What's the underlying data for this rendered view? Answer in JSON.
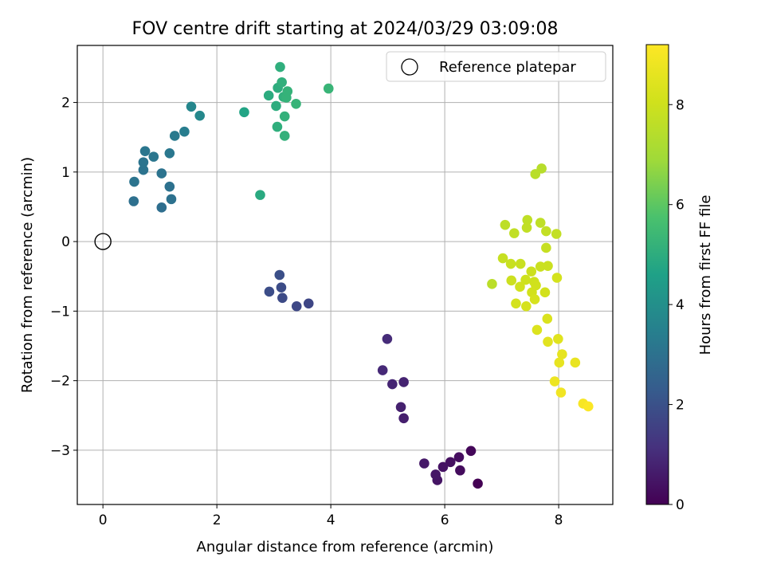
{
  "chart_data": {
    "type": "scatter",
    "title": "FOV centre drift starting at 2024/03/29 03:09:08",
    "xlabel": "Angular distance from reference (arcmin)",
    "ylabel": "Rotation from reference (arcmin)",
    "xlim": [
      -0.45,
      8.95
    ],
    "ylim": [
      -3.78,
      2.82
    ],
    "xticks": [
      0,
      2,
      4,
      6,
      8
    ],
    "yticks": [
      -3,
      -2,
      -1,
      0,
      1,
      2
    ],
    "grid": true,
    "legend": {
      "position": "top-right",
      "entries": [
        "Reference platepar"
      ]
    },
    "colorbar": {
      "label": "Hours from first FF file",
      "range": [
        0,
        9.2
      ],
      "ticks": [
        0,
        2,
        4,
        6,
        8
      ],
      "colormap": "viridis"
    },
    "reference_point": {
      "x": 0,
      "y": 0,
      "marker": "open-circle"
    },
    "points": [
      {
        "x": 6.58,
        "y": -3.48,
        "t": 0.0
      },
      {
        "x": 6.46,
        "y": -3.01,
        "t": 0.15
      },
      {
        "x": 6.27,
        "y": -3.29,
        "t": 0.25
      },
      {
        "x": 6.25,
        "y": -3.1,
        "t": 0.3
      },
      {
        "x": 6.1,
        "y": -3.17,
        "t": 0.35
      },
      {
        "x": 5.97,
        "y": -3.24,
        "t": 0.4
      },
      {
        "x": 5.87,
        "y": -3.43,
        "t": 0.45
      },
      {
        "x": 5.84,
        "y": -3.35,
        "t": 0.5
      },
      {
        "x": 5.64,
        "y": -3.19,
        "t": 0.55
      },
      {
        "x": 5.28,
        "y": -2.54,
        "t": 0.7
      },
      {
        "x": 5.23,
        "y": -2.38,
        "t": 0.75
      },
      {
        "x": 5.28,
        "y": -2.02,
        "t": 0.8
      },
      {
        "x": 5.08,
        "y": -2.05,
        "t": 0.85
      },
      {
        "x": 4.91,
        "y": -1.85,
        "t": 0.95
      },
      {
        "x": 4.99,
        "y": -1.4,
        "t": 1.0
      },
      {
        "x": 3.61,
        "y": -0.89,
        "t": 1.7
      },
      {
        "x": 3.4,
        "y": -0.93,
        "t": 1.75
      },
      {
        "x": 3.15,
        "y": -0.81,
        "t": 1.8
      },
      {
        "x": 3.13,
        "y": -0.66,
        "t": 1.85
      },
      {
        "x": 2.92,
        "y": -0.72,
        "t": 1.9
      },
      {
        "x": 3.1,
        "y": -0.48,
        "t": 1.95
      },
      {
        "x": 1.03,
        "y": 0.49,
        "t": 2.9
      },
      {
        "x": 0.54,
        "y": 0.58,
        "t": 2.95
      },
      {
        "x": 1.2,
        "y": 0.61,
        "t": 3.0
      },
      {
        "x": 1.17,
        "y": 0.79,
        "t": 3.0
      },
      {
        "x": 1.03,
        "y": 0.98,
        "t": 3.05
      },
      {
        "x": 0.71,
        "y": 1.03,
        "t": 3.05
      },
      {
        "x": 0.55,
        "y": 0.86,
        "t": 3.1
      },
      {
        "x": 0.71,
        "y": 1.14,
        "t": 3.1
      },
      {
        "x": 0.89,
        "y": 1.22,
        "t": 3.15
      },
      {
        "x": 0.74,
        "y": 1.3,
        "t": 3.15
      },
      {
        "x": 1.17,
        "y": 1.27,
        "t": 3.2
      },
      {
        "x": 1.26,
        "y": 1.52,
        "t": 3.3
      },
      {
        "x": 1.43,
        "y": 1.58,
        "t": 3.4
      },
      {
        "x": 1.55,
        "y": 1.94,
        "t": 3.7
      },
      {
        "x": 1.7,
        "y": 1.81,
        "t": 3.75
      },
      {
        "x": 2.48,
        "y": 1.86,
        "t": 4.7
      },
      {
        "x": 2.76,
        "y": 0.67,
        "t": 4.9
      },
      {
        "x": 2.91,
        "y": 2.1,
        "t": 4.95
      },
      {
        "x": 3.04,
        "y": 1.95,
        "t": 5.0
      },
      {
        "x": 3.07,
        "y": 2.21,
        "t": 5.0
      },
      {
        "x": 3.06,
        "y": 1.65,
        "t": 5.05
      },
      {
        "x": 3.11,
        "y": 2.51,
        "t": 5.05
      },
      {
        "x": 3.14,
        "y": 2.29,
        "t": 5.1
      },
      {
        "x": 3.17,
        "y": 2.08,
        "t": 5.1
      },
      {
        "x": 3.19,
        "y": 1.8,
        "t": 5.15
      },
      {
        "x": 3.19,
        "y": 1.52,
        "t": 5.15
      },
      {
        "x": 3.22,
        "y": 2.07,
        "t": 5.2
      },
      {
        "x": 3.24,
        "y": 2.16,
        "t": 5.2
      },
      {
        "x": 3.39,
        "y": 1.98,
        "t": 5.25
      },
      {
        "x": 3.96,
        "y": 2.2,
        "t": 5.3
      },
      {
        "x": 7.7,
        "y": 1.05,
        "t": 7.45
      },
      {
        "x": 7.59,
        "y": 0.97,
        "t": 7.5
      },
      {
        "x": 6.83,
        "y": -0.61,
        "t": 7.55
      },
      {
        "x": 7.06,
        "y": 0.24,
        "t": 7.6
      },
      {
        "x": 7.45,
        "y": 0.31,
        "t": 7.65
      },
      {
        "x": 7.68,
        "y": 0.27,
        "t": 7.65
      },
      {
        "x": 7.22,
        "y": 0.12,
        "t": 7.7
      },
      {
        "x": 7.44,
        "y": 0.2,
        "t": 7.7
      },
      {
        "x": 7.78,
        "y": 0.15,
        "t": 7.75
      },
      {
        "x": 7.96,
        "y": 0.11,
        "t": 7.75
      },
      {
        "x": 7.78,
        "y": -0.09,
        "t": 7.8
      },
      {
        "x": 7.02,
        "y": -0.24,
        "t": 7.8
      },
      {
        "x": 7.16,
        "y": -0.32,
        "t": 7.85
      },
      {
        "x": 7.33,
        "y": -0.32,
        "t": 7.85
      },
      {
        "x": 7.68,
        "y": -0.36,
        "t": 7.9
      },
      {
        "x": 7.81,
        "y": -0.35,
        "t": 7.9
      },
      {
        "x": 7.52,
        "y": -0.43,
        "t": 7.95
      },
      {
        "x": 7.17,
        "y": -0.56,
        "t": 7.95
      },
      {
        "x": 7.42,
        "y": -0.55,
        "t": 8.0
      },
      {
        "x": 7.57,
        "y": -0.58,
        "t": 8.0
      },
      {
        "x": 7.6,
        "y": -0.63,
        "t": 8.05
      },
      {
        "x": 7.32,
        "y": -0.65,
        "t": 8.05
      },
      {
        "x": 7.53,
        "y": -0.73,
        "t": 8.1
      },
      {
        "x": 7.76,
        "y": -0.73,
        "t": 8.1
      },
      {
        "x": 7.97,
        "y": -0.52,
        "t": 8.15
      },
      {
        "x": 7.25,
        "y": -0.89,
        "t": 8.15
      },
      {
        "x": 7.43,
        "y": -0.93,
        "t": 8.2
      },
      {
        "x": 7.58,
        "y": -0.83,
        "t": 8.2
      },
      {
        "x": 7.8,
        "y": -1.11,
        "t": 8.3
      },
      {
        "x": 7.62,
        "y": -1.27,
        "t": 8.35
      },
      {
        "x": 7.99,
        "y": -1.4,
        "t": 8.45
      },
      {
        "x": 7.81,
        "y": -1.44,
        "t": 8.5
      },
      {
        "x": 8.06,
        "y": -1.62,
        "t": 8.6
      },
      {
        "x": 8.01,
        "y": -1.74,
        "t": 8.65
      },
      {
        "x": 8.29,
        "y": -1.74,
        "t": 8.7
      },
      {
        "x": 7.93,
        "y": -2.01,
        "t": 8.8
      },
      {
        "x": 8.04,
        "y": -2.17,
        "t": 8.9
      },
      {
        "x": 8.43,
        "y": -2.33,
        "t": 9.05
      },
      {
        "x": 8.52,
        "y": -2.37,
        "t": 9.15
      }
    ]
  }
}
